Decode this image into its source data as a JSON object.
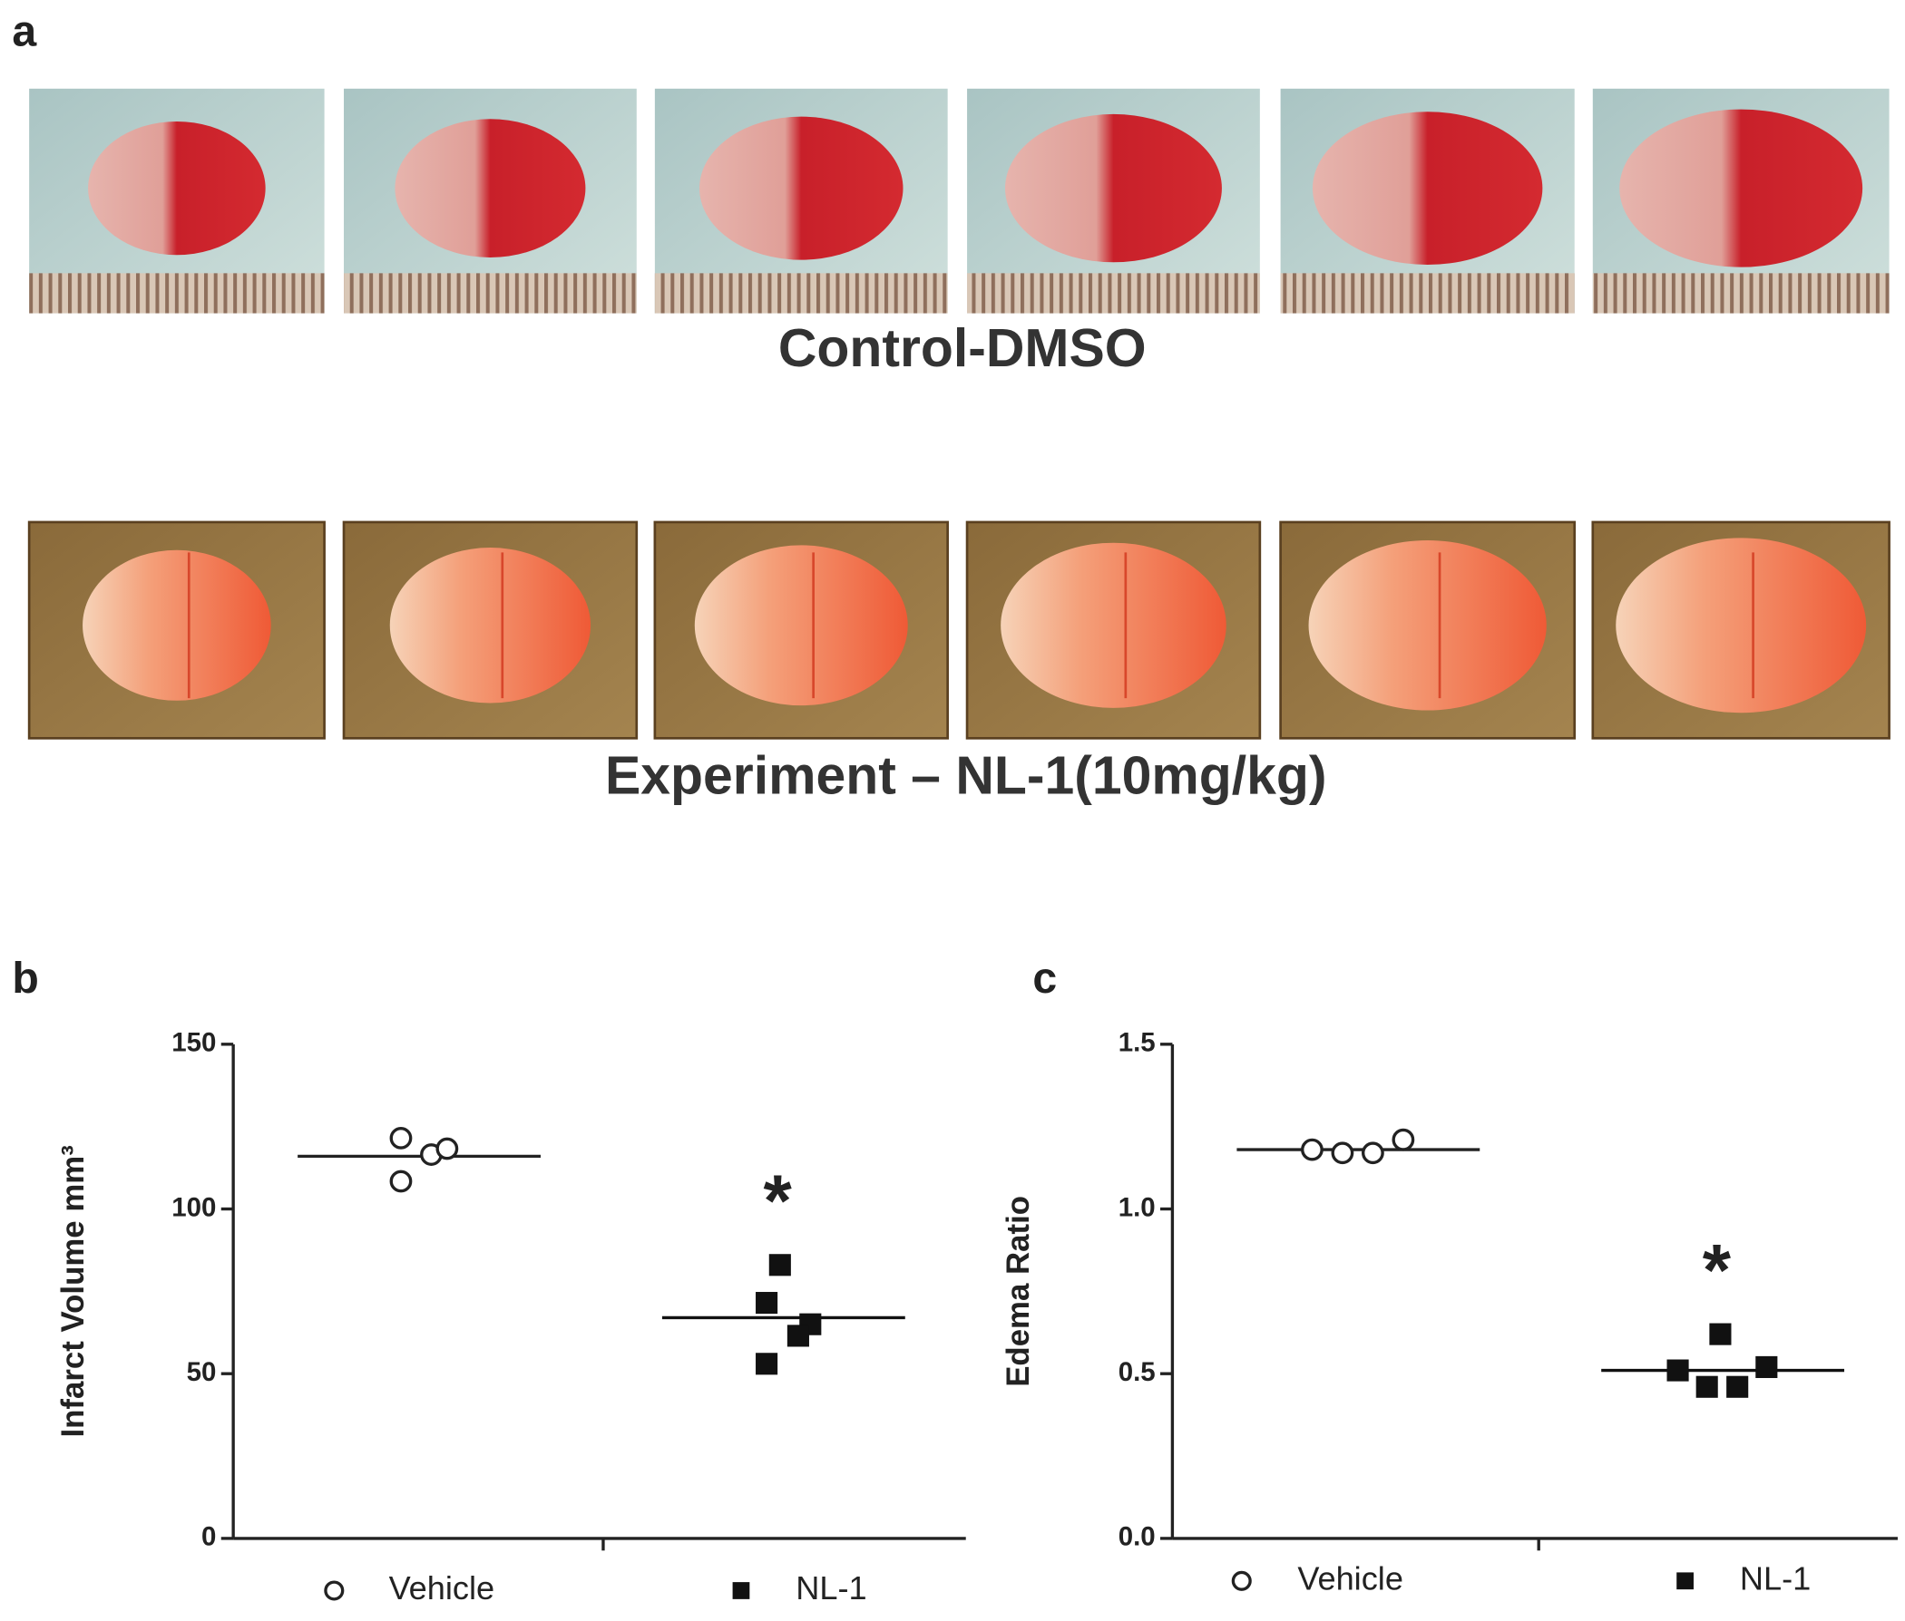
{
  "figure": {
    "panel_labels": [
      "a",
      "b",
      "c"
    ],
    "captions": [
      "Control-DMSO",
      "Experiment – NL-1(10mg/kg)"
    ]
  },
  "chart_data": [
    {
      "type": "scatter",
      "ylabel": "Infarct Volume mm³",
      "categories": [
        "Vehicle",
        "NL-1"
      ],
      "ylim": [
        0,
        150
      ],
      "yticks": [
        0,
        50,
        100,
        150
      ],
      "series": [
        {
          "name": "Vehicle",
          "color": "#222222",
          "marker": "open-circle",
          "values": [
            121.5,
            116.5,
            118.3,
            108.4
          ],
          "mean": 116
        },
        {
          "name": "NL-1",
          "color": "#111111",
          "marker": "filled-square",
          "values": [
            83,
            71.5,
            65,
            61.5,
            53
          ],
          "mean": 67
        }
      ],
      "annotation": "*"
    },
    {
      "type": "scatter",
      "ylabel": "Edema Ratio",
      "categories": [
        "Vehicle",
        "NL-1"
      ],
      "ylim": [
        0,
        1.5
      ],
      "yticks": [
        {
          "value": 0,
          "label": "0.0"
        },
        0.5,
        {
          "value": 1,
          "label": "1.0"
        },
        1.5
      ],
      "series": [
        {
          "name": "Vehicle",
          "color": "#222222",
          "marker": "open-circle",
          "values": [
            1.18,
            1.17,
            1.17,
            1.21
          ],
          "mean": 1.18
        },
        {
          "name": "NL-1",
          "color": "#111111",
          "marker": "filled-square",
          "values": [
            0.62,
            0.51,
            0.46,
            0.46,
            0.52
          ],
          "mean": 0.51
        }
      ],
      "annotation": "*"
    }
  ]
}
